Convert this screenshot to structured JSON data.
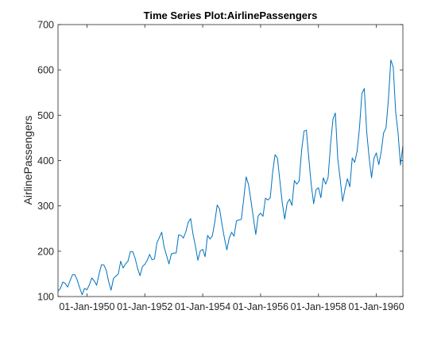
{
  "chart_data": {
    "type": "line",
    "title": "Time Series Plot:AirlinePassengers",
    "xlabel": "",
    "ylabel": "AirlinePassengers",
    "x_start": "1949-01",
    "x_interval": "monthly",
    "xlim": [
      "1949-01",
      "1960-12"
    ],
    "ylim": [
      100,
      700
    ],
    "y_ticks": [
      100,
      200,
      300,
      400,
      500,
      600,
      700
    ],
    "x_tick_labels": [
      "01-Jan-1950",
      "01-Jan-1952",
      "01-Jan-1954",
      "01-Jan-1956",
      "01-Jan-1958",
      "01-Jan-1960"
    ],
    "grid": false,
    "line_color": "#0072BD",
    "series": [
      {
        "values": [
          112,
          118,
          132,
          129,
          121,
          135,
          148,
          148,
          136,
          119,
          104,
          118,
          115,
          126,
          141,
          135,
          125,
          149,
          170,
          170,
          158,
          133,
          114,
          140,
          145,
          150,
          178,
          163,
          172,
          178,
          199,
          199,
          184,
          162,
          146,
          166,
          171,
          180,
          193,
          181,
          183,
          218,
          230,
          242,
          209,
          191,
          172,
          194,
          196,
          196,
          236,
          235,
          229,
          243,
          264,
          272,
          237,
          211,
          180,
          201,
          204,
          188,
          235,
          227,
          234,
          264,
          302,
          293,
          259,
          229,
          203,
          229,
          242,
          233,
          267,
          269,
          270,
          315,
          364,
          347,
          312,
          274,
          237,
          278,
          284,
          277,
          317,
          313,
          318,
          374,
          413,
          405,
          355,
          306,
          271,
          306,
          315,
          301,
          356,
          348,
          355,
          422,
          465,
          467,
          404,
          347,
          305,
          336,
          340,
          318,
          362,
          348,
          363,
          435,
          491,
          505,
          404,
          359,
          310,
          337,
          360,
          342,
          406,
          396,
          420,
          472,
          548,
          559,
          463,
          407,
          362,
          405,
          417,
          391,
          419,
          461,
          472,
          535,
          622,
          606,
          508,
          461,
          390,
          432
        ]
      }
    ]
  }
}
